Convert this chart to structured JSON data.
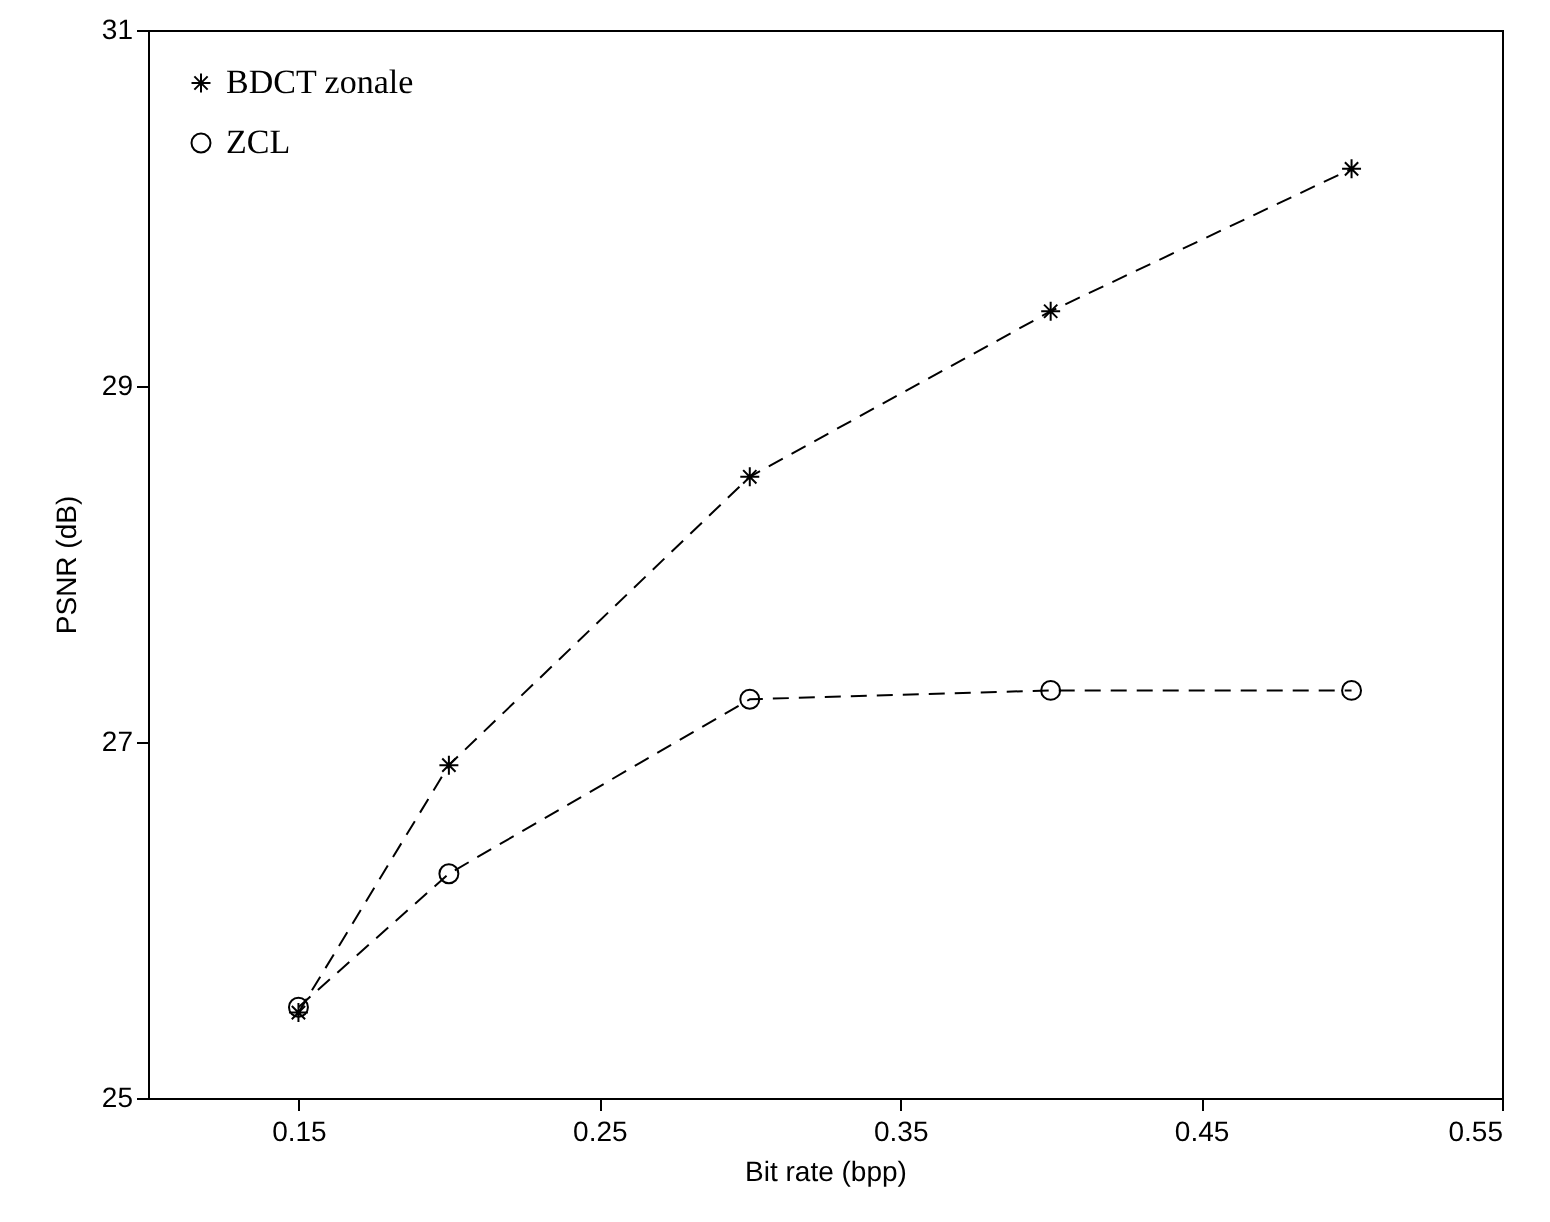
{
  "chart_data": {
    "type": "line",
    "xlabel": "Bit rate (bpp)",
    "ylabel": "PSNR (dB)",
    "x": [
      0.15,
      0.2,
      0.3,
      0.4,
      0.5
    ],
    "series": [
      {
        "name": "BDCT zonale",
        "color": "#000000",
        "marker": "cross",
        "values": [
          25.48,
          26.87,
          28.49,
          29.42,
          30.22
        ]
      },
      {
        "name": "ZCL",
        "color": "#000000",
        "marker": "circle",
        "values": [
          25.51,
          26.26,
          27.24,
          27.29,
          27.29
        ]
      }
    ],
    "xlim": [
      0.1,
      0.55
    ],
    "xticks": [
      0.15,
      0.25,
      0.35,
      0.45,
      0.55
    ],
    "ylim": [
      25,
      31
    ],
    "yticks": [
      25,
      27,
      29,
      31
    ],
    "grid": false,
    "legend": "top left",
    "line_style": "dashed"
  }
}
